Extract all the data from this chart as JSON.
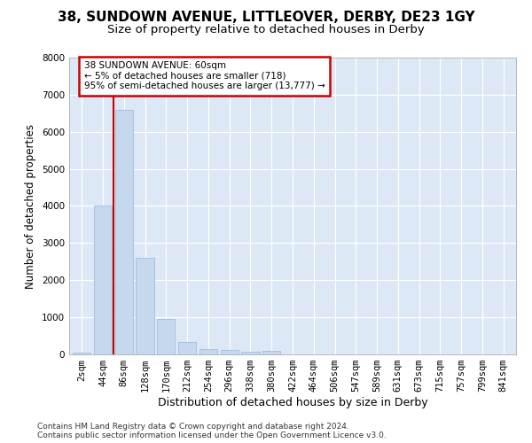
{
  "title1": "38, SUNDOWN AVENUE, LITTLEOVER, DERBY, DE23 1GY",
  "title2": "Size of property relative to detached houses in Derby",
  "xlabel": "Distribution of detached houses by size in Derby",
  "ylabel": "Number of detached properties",
  "categories": [
    "2sqm",
    "44sqm",
    "86sqm",
    "128sqm",
    "170sqm",
    "212sqm",
    "254sqm",
    "296sqm",
    "338sqm",
    "380sqm",
    "422sqm",
    "464sqm",
    "506sqm",
    "547sqm",
    "589sqm",
    "631sqm",
    "673sqm",
    "715sqm",
    "757sqm",
    "799sqm",
    "841sqm"
  ],
  "values": [
    50,
    4000,
    6600,
    2600,
    950,
    330,
    150,
    120,
    70,
    100,
    0,
    0,
    0,
    0,
    0,
    0,
    0,
    0,
    0,
    0,
    0
  ],
  "bar_color": "#c5d8ee",
  "bar_edge_color": "#a0bedd",
  "vline_color": "#cc0000",
  "vline_x": 1.5,
  "annotation_text": "38 SUNDOWN AVENUE: 60sqm\n← 5% of detached houses are smaller (718)\n95% of semi-detached houses are larger (13,777) →",
  "annotation_box_facecolor": "#ffffff",
  "annotation_box_edgecolor": "#cc0000",
  "ylim_max": 8000,
  "yticks": [
    0,
    1000,
    2000,
    3000,
    4000,
    5000,
    6000,
    7000,
    8000
  ],
  "bg_color": "#ffffff",
  "plot_bg_color": "#dce8f5",
  "footer1": "Contains HM Land Registry data © Crown copyright and database right 2024.",
  "footer2": "Contains public sector information licensed under the Open Government Licence v3.0.",
  "title1_fontsize": 11,
  "title2_fontsize": 9.5,
  "xlabel_fontsize": 9,
  "ylabel_fontsize": 8.5,
  "tick_fontsize": 7.5,
  "annotation_fontsize": 7.5,
  "footer_fontsize": 6.5
}
